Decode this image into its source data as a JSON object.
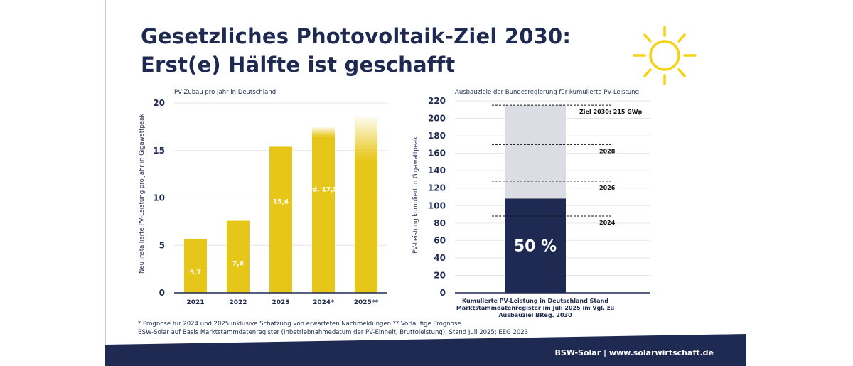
{
  "title_line1": "Gesetzliches Photovoltaik-Ziel 2030:",
  "title_line2": "Erst(e) Hälfte ist geschafft",
  "colors": {
    "navy": "#1f2a52",
    "yellow": "#e7c61a",
    "gray": "#dcdce4",
    "sun": "#f5d312"
  },
  "chart_data": [
    {
      "type": "bar",
      "title": "PV-Zubau pro Jahr in Deutschland",
      "ylabel": "Neu installierte PV-Leistung pro Jahr in Gigawattpeak",
      "xlabel": "",
      "ylim": [
        0,
        20
      ],
      "yticks": [
        0,
        5,
        10,
        15,
        20
      ],
      "categories": [
        "2021",
        "2022",
        "2023",
        "2024*",
        "2025**"
      ],
      "values": [
        5.7,
        7.6,
        15.4,
        17.5,
        18.6
      ],
      "value_labels": [
        "5,7",
        "7,6",
        "15,4",
        "rd. 17,5",
        ""
      ],
      "forecast": [
        false,
        false,
        false,
        true,
        true
      ]
    },
    {
      "type": "bar",
      "title": "Ausbauziele der Bundesregierung für kumulierte PV-Leistung",
      "ylabel": "PV-Leistung kumuliert in Gigawattpeak",
      "xlabel": "",
      "ylim": [
        0,
        220
      ],
      "yticks": [
        0,
        20,
        40,
        60,
        80,
        100,
        120,
        140,
        160,
        180,
        200,
        220
      ],
      "achieved": 108,
      "target": 215,
      "achieved_label": "50 %",
      "category_label_lines": [
        "Kumulierte PV-Leistung in Deutschland Stand",
        "Marktstammdatenregister im Juli 2025 im Vgl. zu",
        "Ausbauziel BReg. 2030"
      ],
      "targets": [
        {
          "label": "Ziel 2030: 215 GWp",
          "value": 215
        },
        {
          "label": "2028",
          "value": 170
        },
        {
          "label": "2026",
          "value": 128
        },
        {
          "label": "2024",
          "value": 88
        }
      ]
    }
  ],
  "footnote_line1": "* Prognose für 2024 und 2025 inklusive Schätzung von erwarteten Nachmeldungen  ** Vorläufige Prognose",
  "footnote_line2": "BSW-Solar auf Basis Marktstammdatenregister (Inbetriebnahmedatum der PV-Einheit, Bruttoleistung), Stand Juli 2025; EEG 2023",
  "footer": "BSW-Solar | www.solarwirtschaft.de"
}
